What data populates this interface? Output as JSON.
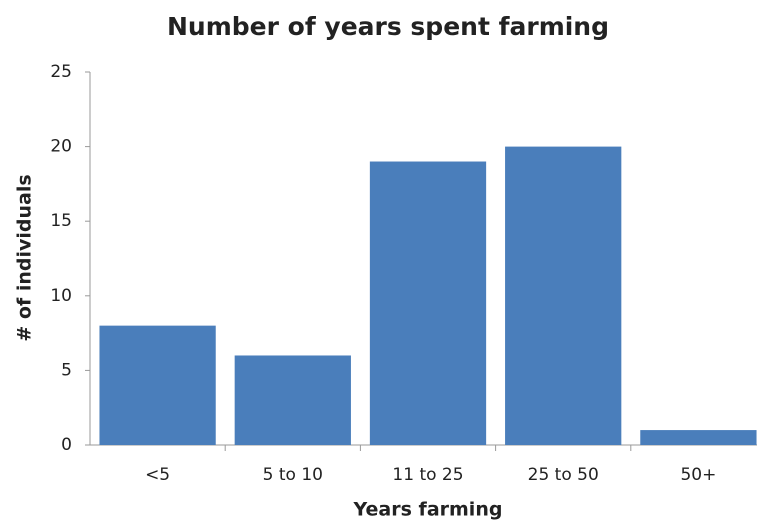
{
  "chart_data": {
    "type": "bar",
    "title": "Number of years spent farming",
    "x_label": "Years farming",
    "y_label": "# of individuals",
    "categories": [
      "<5",
      "5 to 10",
      "11 to 25",
      "25 to 50",
      "50+"
    ],
    "values": [
      8,
      6,
      19,
      20,
      1
    ],
    "color": "#4a7ebb",
    "ylim": [
      0,
      25
    ],
    "yticks": [
      0,
      5,
      10,
      15,
      20,
      25
    ],
    "grid": false
  }
}
